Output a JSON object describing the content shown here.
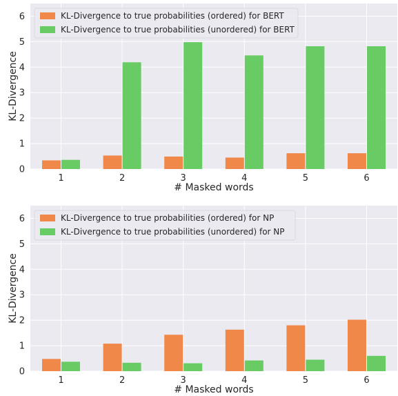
{
  "colors": {
    "plot_bg": "#ebeaf1",
    "grid": "#ffffff",
    "ordered": "#f0884a",
    "unordered": "#68cb63"
  },
  "chart_data": [
    {
      "type": "bar",
      "categories": [
        "1",
        "2",
        "3",
        "4",
        "5",
        "6"
      ],
      "xlabel": "# Masked words",
      "ylabel": "KL-Divergence",
      "ylim": [
        0,
        6.5
      ],
      "yticks": [
        "0",
        "1",
        "2",
        "3",
        "4",
        "5",
        "6"
      ],
      "grid": true,
      "legend_position": "top-left",
      "series": [
        {
          "name": "KL-Divergence to true probabilities (ordered) for BERT",
          "color_key": "ordered",
          "values": [
            0.34,
            0.53,
            0.49,
            0.45,
            0.62,
            0.62
          ]
        },
        {
          "name": "KL-Divergence to true probabilities (unordered) for BERT",
          "color_key": "unordered",
          "values": [
            0.36,
            4.19,
            4.98,
            4.46,
            4.82,
            4.82
          ]
        }
      ]
    },
    {
      "type": "bar",
      "categories": [
        "1",
        "2",
        "3",
        "4",
        "5",
        "6"
      ],
      "xlabel": "# Masked words",
      "ylabel": "KL-Divergence",
      "ylim": [
        0,
        6.5
      ],
      "yticks": [
        "0",
        "1",
        "2",
        "3",
        "4",
        "5",
        "6"
      ],
      "grid": true,
      "legend_position": "top-left",
      "series": [
        {
          "name": "KL-Divergence to true probabilities (ordered) for NP",
          "color_key": "ordered",
          "values": [
            0.48,
            1.08,
            1.43,
            1.63,
            1.8,
            2.02
          ]
        },
        {
          "name": "KL-Divergence to true probabilities (unordered) for NP",
          "color_key": "unordered",
          "values": [
            0.37,
            0.33,
            0.31,
            0.42,
            0.45,
            0.6
          ]
        }
      ]
    }
  ]
}
